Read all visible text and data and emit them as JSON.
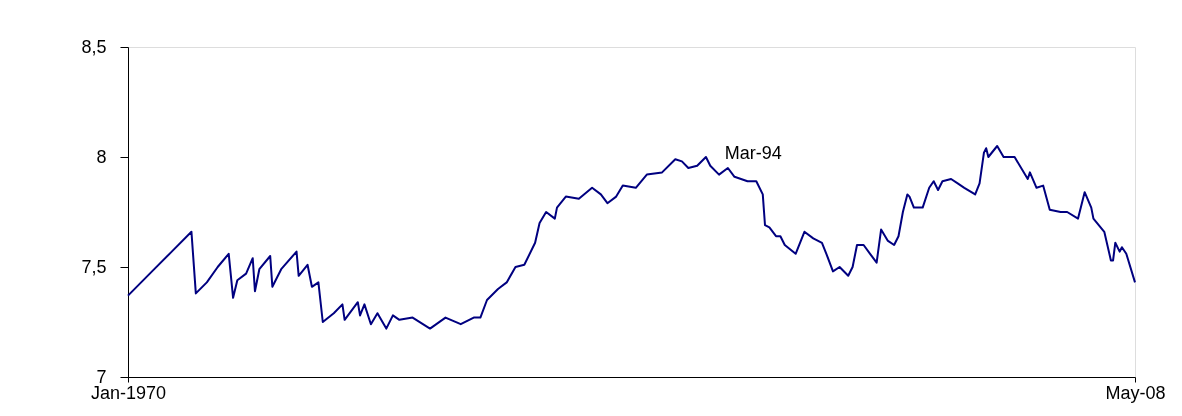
{
  "chart_data": {
    "type": "line",
    "x": [
      "1970-01",
      "1970-12",
      "1971-09",
      "1972-06",
      "1972-08",
      "1973-01",
      "1973-06",
      "1973-11",
      "1974-01",
      "1974-03",
      "1974-07",
      "1974-10",
      "1974-11",
      "1975-01",
      "1975-06",
      "1975-07",
      "1975-11",
      "1976-06",
      "1976-07",
      "1976-11",
      "1977-01",
      "1977-04",
      "1977-06",
      "1977-11",
      "1978-03",
      "1978-04",
      "1978-10",
      "1978-11",
      "1979-01",
      "1979-04",
      "1979-07",
      "1979-11",
      "1980-02",
      "1980-05",
      "1980-11",
      "1981-07",
      "1982-02",
      "1982-09",
      "1983-03",
      "1983-06",
      "1983-09",
      "1984-02",
      "1984-06",
      "1984-10",
      "1985-02",
      "1985-07",
      "1985-09",
      "1985-12",
      "1986-04",
      "1986-05",
      "1986-09",
      "1987-03",
      "1987-09",
      "1988-01",
      "1988-04",
      "1988-08",
      "1988-11",
      "1989-05",
      "1989-10",
      "1990-05",
      "1990-11",
      "1991-02",
      "1991-05",
      "1991-09",
      "1992-01",
      "1992-03",
      "1992-07",
      "1992-11",
      "1993-02",
      "1993-08",
      "1993-12",
      "1994-03",
      "1994-04",
      "1994-06",
      "1994-09",
      "1994-11",
      "1995-01",
      "1995-06",
      "1995-10",
      "1996-02",
      "1996-06",
      "1996-08",
      "1996-11",
      "1997-02",
      "1997-06",
      "1997-08",
      "1997-10",
      "1998-01",
      "1998-04",
      "1998-07",
      "1998-09",
      "1998-12",
      "1999-03",
      "1999-05",
      "1999-07",
      "1999-09",
      "1999-10",
      "1999-12",
      "2000-04",
      "2000-07",
      "2000-09",
      "2000-11",
      "2001-01",
      "2001-05",
      "2001-08",
      "2001-11",
      "2002-04",
      "2002-06",
      "2002-08",
      "2002-09",
      "2002-10",
      "2003-02",
      "2003-05",
      "2003-07",
      "2003-10",
      "2004-04",
      "2004-05",
      "2004-08",
      "2004-11",
      "2005-02",
      "2005-07",
      "2005-10",
      "2006-03",
      "2006-06",
      "2006-09",
      "2006-10",
      "2007-03",
      "2007-06",
      "2007-07",
      "2007-08",
      "2007-10",
      "2007-11",
      "2008-01",
      "2008-05"
    ],
    "series": [
      {
        "color": "#000080",
        "values": [
          7.37,
          7.48,
          7.57,
          7.66,
          7.38,
          7.43,
          7.5,
          7.56,
          7.36,
          7.44,
          7.47,
          7.54,
          7.39,
          7.49,
          7.55,
          7.41,
          7.49,
          7.57,
          7.46,
          7.51,
          7.41,
          7.43,
          7.25,
          7.29,
          7.33,
          7.26,
          7.34,
          7.28,
          7.33,
          7.24,
          7.29,
          7.22,
          7.28,
          7.26,
          7.27,
          7.22,
          7.27,
          7.24,
          7.27,
          7.27,
          7.35,
          7.4,
          7.43,
          7.5,
          7.51,
          7.61,
          7.7,
          7.75,
          7.72,
          7.77,
          7.82,
          7.81,
          7.86,
          7.83,
          7.79,
          7.82,
          7.87,
          7.86,
          7.92,
          7.93,
          7.99,
          7.98,
          7.95,
          7.96,
          8.0,
          7.96,
          7.92,
          7.95,
          7.91,
          7.89,
          7.89,
          7.83,
          7.69,
          7.68,
          7.64,
          7.64,
          7.6,
          7.56,
          7.66,
          7.63,
          7.61,
          7.56,
          7.48,
          7.5,
          7.46,
          7.5,
          7.6,
          7.6,
          7.56,
          7.52,
          7.67,
          7.62,
          7.6,
          7.64,
          7.75,
          7.83,
          7.82,
          7.77,
          7.77,
          7.86,
          7.89,
          7.85,
          7.89,
          7.9,
          7.88,
          7.86,
          7.83,
          7.88,
          8.02,
          8.04,
          8.0,
          8.05,
          8.0,
          8.0,
          8.0,
          7.9,
          7.93,
          7.86,
          7.87,
          7.76,
          7.75,
          7.75,
          7.72,
          7.84,
          7.77,
          7.72,
          7.66,
          7.53,
          7.53,
          7.61,
          7.57,
          7.59,
          7.56,
          7.43
        ]
      }
    ],
    "xlim": [
      "1970-01",
      "2008-05"
    ],
    "xticks": [
      {
        "value": "1970-01",
        "label": "Jan-1970"
      },
      {
        "value": "2008-05",
        "label": "May-08"
      }
    ],
    "ylim": [
      7,
      8.5
    ],
    "yticks": [
      {
        "value": 7,
        "label": "7"
      },
      {
        "value": 7.5,
        "label": "7,5"
      },
      {
        "value": 8,
        "label": "8"
      },
      {
        "value": 8.5,
        "label": "8,5"
      }
    ],
    "annotations": [
      {
        "text": "Mar-94",
        "x": "1994-03",
        "y": 7.83
      }
    ],
    "grid": false,
    "marker": "none",
    "line_style": "solid"
  }
}
